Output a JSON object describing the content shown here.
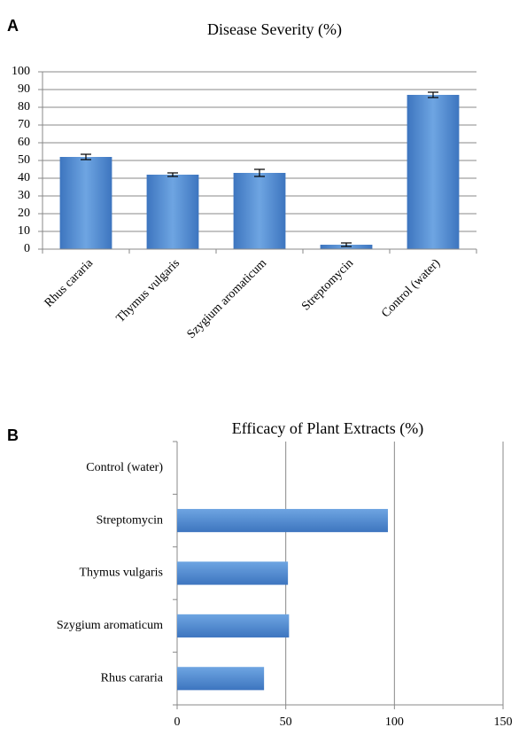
{
  "chart_data": [
    {
      "type": "bar",
      "panel": "A",
      "title": "Disease Severity (%)",
      "categories": [
        "Rhus cararia",
        "Thymus vulgaris",
        "Szygium aromaticum",
        "Streptomycin",
        "Control (water)"
      ],
      "values": [
        52,
        42,
        43,
        2.5,
        87
      ],
      "errors": [
        1.5,
        1,
        2,
        1,
        1.5
      ],
      "ylim": [
        0,
        100
      ],
      "yticks": [
        0,
        10,
        20,
        30,
        40,
        50,
        60,
        70,
        80,
        90,
        100
      ],
      "grid": true,
      "color": "#4a86cf"
    },
    {
      "type": "barh",
      "panel": "B",
      "title": "Efficacy of Plant Extracts (%)",
      "categories": [
        "Rhus cararia",
        "Szygium aromaticum",
        "Thymus vulgaris",
        "Streptomycin",
        "Control (water)"
      ],
      "values": [
        40,
        51.5,
        51,
        97,
        0
      ],
      "xlim": [
        0,
        150
      ],
      "xticks": [
        0,
        50,
        100,
        150
      ],
      "grid": true,
      "color": "#4a86cf"
    }
  ]
}
